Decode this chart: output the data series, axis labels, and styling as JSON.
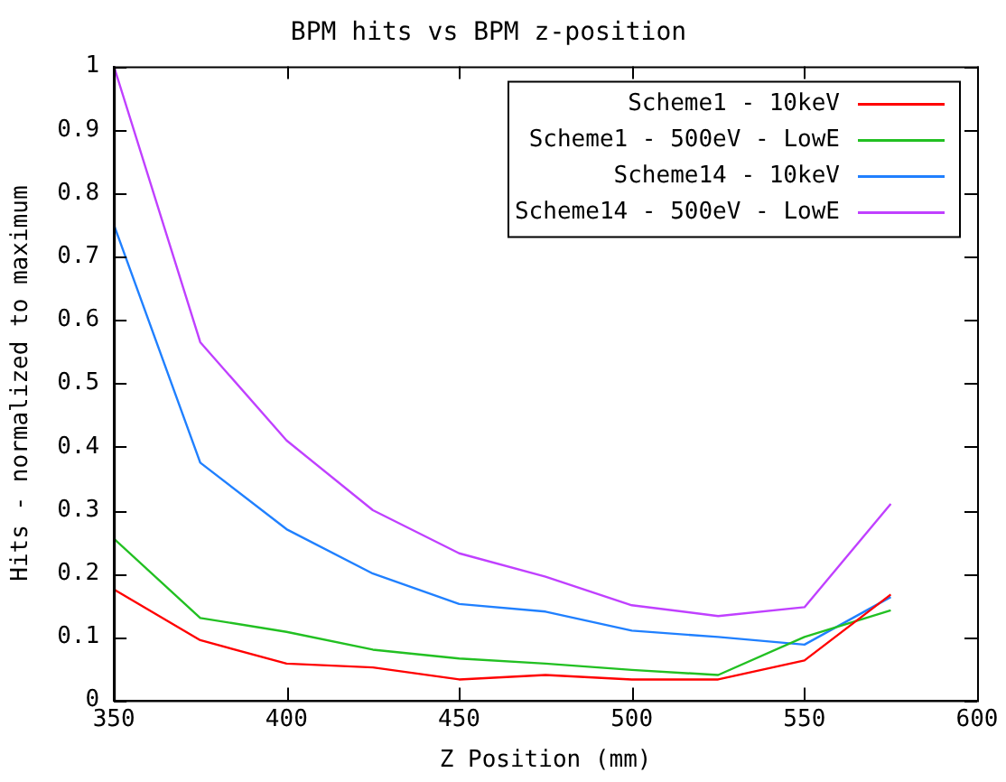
{
  "chart_data": {
    "type": "line",
    "title": "BPM hits vs BPM z-position",
    "xlabel": "Z Position (mm)",
    "ylabel": "Hits - normalized to maximum",
    "x": [
      350,
      375,
      400,
      425,
      450,
      475,
      500,
      525,
      550,
      575
    ],
    "series": [
      {
        "name": "Scheme1 - 10keV",
        "color": "#ff0000",
        "values": [
          0.175,
          0.095,
          0.058,
          0.052,
          0.033,
          0.04,
          0.033,
          0.033,
          0.063,
          0.167
        ]
      },
      {
        "name": "Scheme1 - 500eV - LowE",
        "color": "#22c022",
        "values": [
          0.255,
          0.13,
          0.108,
          0.08,
          0.066,
          0.058,
          0.048,
          0.04,
          0.1,
          0.142
        ]
      },
      {
        "name": "Scheme14 - 10keV",
        "color": "#2080ff",
        "values": [
          0.75,
          0.375,
          0.27,
          0.2,
          0.152,
          0.14,
          0.11,
          0.1,
          0.088,
          0.163
        ]
      },
      {
        "name": "Scheme14 - 500eV - LowE",
        "color": "#c040ff",
        "values": [
          1,
          0.565,
          0.41,
          0.3,
          0.232,
          0.195,
          0.15,
          0.133,
          0.147,
          0.31
        ]
      }
    ],
    "xlim": [
      350,
      600
    ],
    "xticks": [
      350,
      400,
      450,
      500,
      550,
      600
    ],
    "ylim": [
      0,
      1
    ],
    "yticks": [
      0,
      0.1,
      0.2,
      0.3,
      0.4,
      0.5,
      0.6,
      0.7,
      0.8,
      0.9,
      1
    ],
    "grid": false,
    "legend": "top right",
    "marker": "none",
    "line_style": "solid"
  }
}
